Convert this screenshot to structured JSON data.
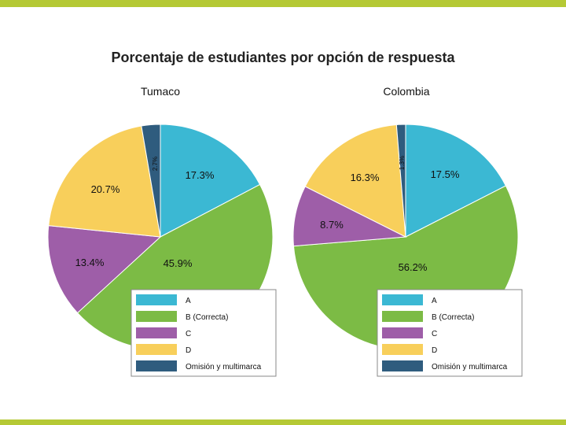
{
  "chart_data": {
    "type": "pie",
    "title": "Porcentaje de estudiantes por opción de respuesta",
    "charts": [
      {
        "subtitle": "Tumaco",
        "slices": [
          {
            "category": "A",
            "value": 17.3,
            "label": "17.3%"
          },
          {
            "category": "B (Correcta)",
            "value": 45.9,
            "label": "45.9%"
          },
          {
            "category": "C",
            "value": 13.4,
            "label": "13.4%"
          },
          {
            "category": "D",
            "value": 20.7,
            "label": "20.7%"
          },
          {
            "category": "Omisión y multimarca",
            "value": 2.7,
            "label": "2.7%"
          }
        ]
      },
      {
        "subtitle": "Colombia",
        "slices": [
          {
            "category": "A",
            "value": 17.5,
            "label": "17.5%"
          },
          {
            "category": "B (Correcta)",
            "value": 56.2,
            "label": "56.2%"
          },
          {
            "category": "C",
            "value": 8.7,
            "label": "8.7%"
          },
          {
            "category": "D",
            "value": 16.3,
            "label": "16.3%"
          },
          {
            "category": "Omisión y multimarca",
            "value": 1.3,
            "label": "1.3%"
          }
        ]
      }
    ],
    "legend": [
      {
        "label": "A",
        "color": "#3bb8d3"
      },
      {
        "label": "B (Correcta)",
        "color": "#7cbb45"
      },
      {
        "label": "C",
        "color": "#9e5ea8"
      },
      {
        "label": "D",
        "color": "#f8cf5b"
      },
      {
        "label": "Omisión y multimarca",
        "color": "#2f5c7e"
      }
    ],
    "legend_placement": "bottom-right of each pie"
  },
  "colors": {
    "accent_bar": "#b5c935"
  }
}
